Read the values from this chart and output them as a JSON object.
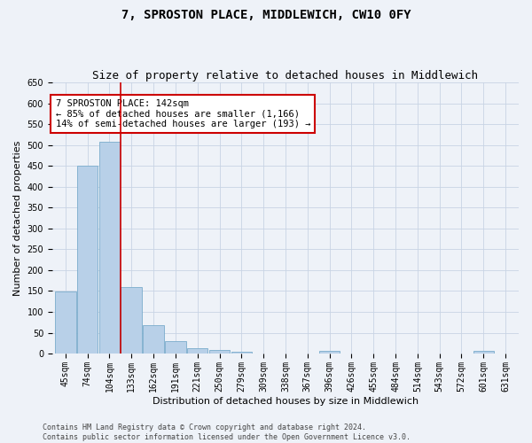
{
  "title": "7, SPROSTON PLACE, MIDDLEWICH, CW10 0FY",
  "subtitle": "Size of property relative to detached houses in Middlewich",
  "xlabel": "Distribution of detached houses by size in Middlewich",
  "ylabel": "Number of detached properties",
  "footnote1": "Contains HM Land Registry data © Crown copyright and database right 2024.",
  "footnote2": "Contains public sector information licensed under the Open Government Licence v3.0.",
  "categories": [
    "45sqm",
    "74sqm",
    "104sqm",
    "133sqm",
    "162sqm",
    "191sqm",
    "221sqm",
    "250sqm",
    "279sqm",
    "309sqm",
    "338sqm",
    "367sqm",
    "396sqm",
    "426sqm",
    "455sqm",
    "484sqm",
    "514sqm",
    "543sqm",
    "572sqm",
    "601sqm",
    "631sqm"
  ],
  "values": [
    148,
    450,
    508,
    160,
    68,
    30,
    13,
    9,
    5,
    0,
    0,
    0,
    6,
    0,
    0,
    0,
    0,
    0,
    0,
    6,
    0
  ],
  "bar_color": "#b8d0e8",
  "bar_edge_color": "#7aaccc",
  "ylim": [
    0,
    650
  ],
  "yticks": [
    0,
    50,
    100,
    150,
    200,
    250,
    300,
    350,
    400,
    450,
    500,
    550,
    600,
    650
  ],
  "vline_color": "#cc0000",
  "annotation_text": "7 SPROSTON PLACE: 142sqm\n← 85% of detached houses are smaller (1,166)\n14% of semi-detached houses are larger (193) →",
  "annotation_box_color": "#ffffff",
  "annotation_box_edge": "#cc0000",
  "bg_color": "#eef2f8",
  "title_fontsize": 10,
  "subtitle_fontsize": 9,
  "axis_label_fontsize": 8,
  "tick_fontsize": 7,
  "annotation_fontsize": 7.5,
  "footnote_fontsize": 6
}
